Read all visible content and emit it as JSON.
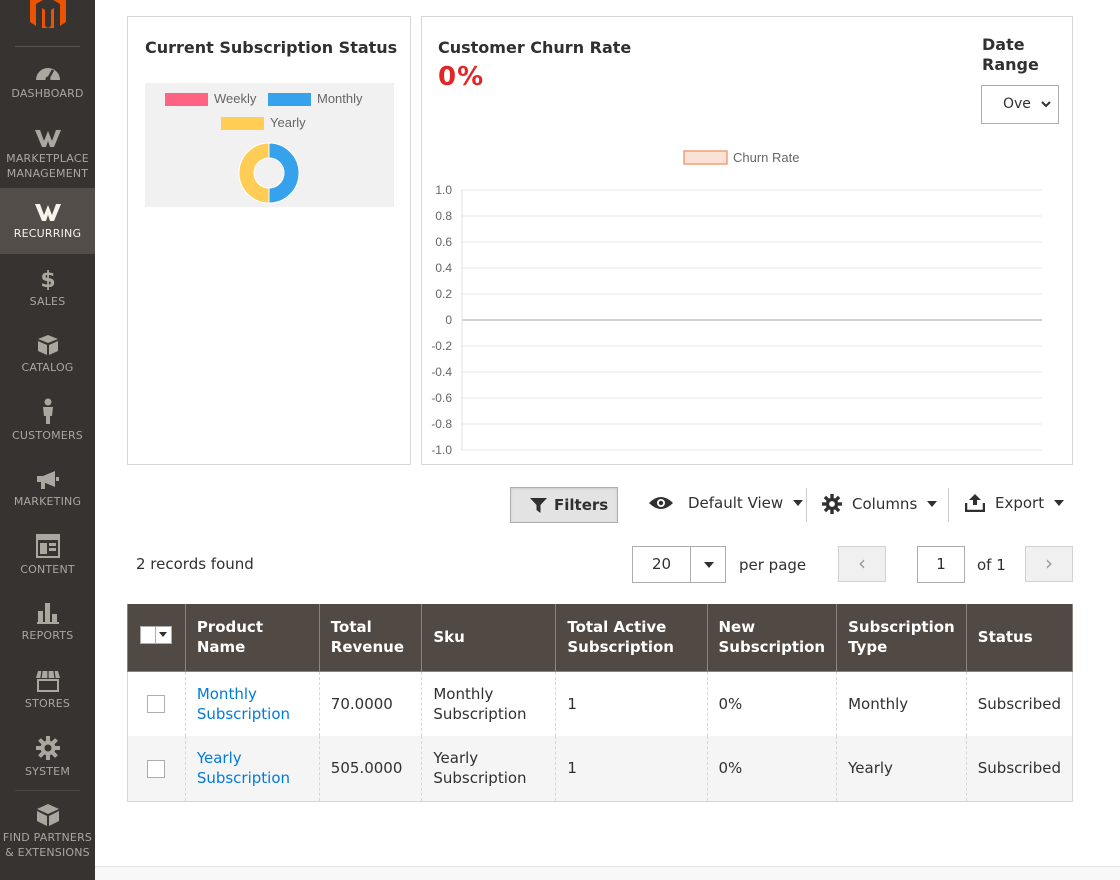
{
  "sidebar": {
    "items": [
      {
        "label": "DASHBOARD",
        "icon": "dashboard-icon"
      },
      {
        "label": "MARKETPLACE MANAGEMENT",
        "icon": "marketplace-icon"
      },
      {
        "label": "RECURRING",
        "icon": "recurring-icon",
        "active": true
      },
      {
        "label": "SALES",
        "icon": "dollar-icon"
      },
      {
        "label": "CATALOG",
        "icon": "catalog-icon"
      },
      {
        "label": "CUSTOMERS",
        "icon": "customer-icon"
      },
      {
        "label": "MARKETING",
        "icon": "megaphone-icon"
      },
      {
        "label": "CONTENT",
        "icon": "content-icon"
      },
      {
        "label": "REPORTS",
        "icon": "bar-chart-icon"
      },
      {
        "label": "STORES",
        "icon": "store-icon"
      },
      {
        "label": "SYSTEM",
        "icon": "gear-icon"
      },
      {
        "label": "FIND PARTNERS & EXTENSIONS",
        "icon": "extensions-icon"
      }
    ],
    "brand_color": "#eb5202"
  },
  "subscription_status": {
    "title": "Current Subscription Status",
    "legend": [
      {
        "label": "Weekly",
        "color": "#ff6384"
      },
      {
        "label": "Monthly",
        "color": "#36a2eb"
      },
      {
        "label": "Yearly",
        "color": "#ffcd56"
      }
    ],
    "chart_data": {
      "type": "pie",
      "labels": [
        "Weekly",
        "Monthly",
        "Yearly"
      ],
      "values": [
        0,
        1,
        1
      ]
    }
  },
  "churn": {
    "title": "Customer Churn Rate",
    "value": "0%",
    "date_range_label": "Date Range",
    "date_range_value": "Ove",
    "chart_data": {
      "type": "line",
      "series": [
        {
          "name": "Churn Rate",
          "values": []
        }
      ],
      "ylim": [
        -1.0,
        1.0
      ],
      "yticks": [
        "1.0",
        "0.8",
        "0.6",
        "0.4",
        "0.2",
        "0",
        "-0.2",
        "-0.4",
        "-0.6",
        "-0.8",
        "-1.0"
      ],
      "legend_color": "#fbe2d6",
      "legend_border": "#f0a078"
    }
  },
  "toolbar": {
    "filters": "Filters",
    "default_view": "Default View",
    "columns": "Columns",
    "export": "Export"
  },
  "pager": {
    "records": "2 records found",
    "per_page_value": "20",
    "per_page_label": "per page",
    "prev": "‹",
    "next": "›",
    "page": "1",
    "of": "of 1"
  },
  "table": {
    "headers": [
      "Product Name",
      "Total Revenue",
      "Sku",
      "Total Active Subscription",
      "New Subscription",
      "Subscription Type",
      "Status"
    ],
    "rows": [
      {
        "product": "Monthly Subscription",
        "revenue": "70.0000",
        "sku": "Monthly Subscription",
        "active": "1",
        "new": "0%",
        "type": "Monthly",
        "status": "Subscribed"
      },
      {
        "product": "Yearly Subscription",
        "revenue": "505.0000",
        "sku": "Yearly Subscription",
        "active": "1",
        "new": "0%",
        "type": "Yearly",
        "status": "Subscribed"
      }
    ]
  }
}
